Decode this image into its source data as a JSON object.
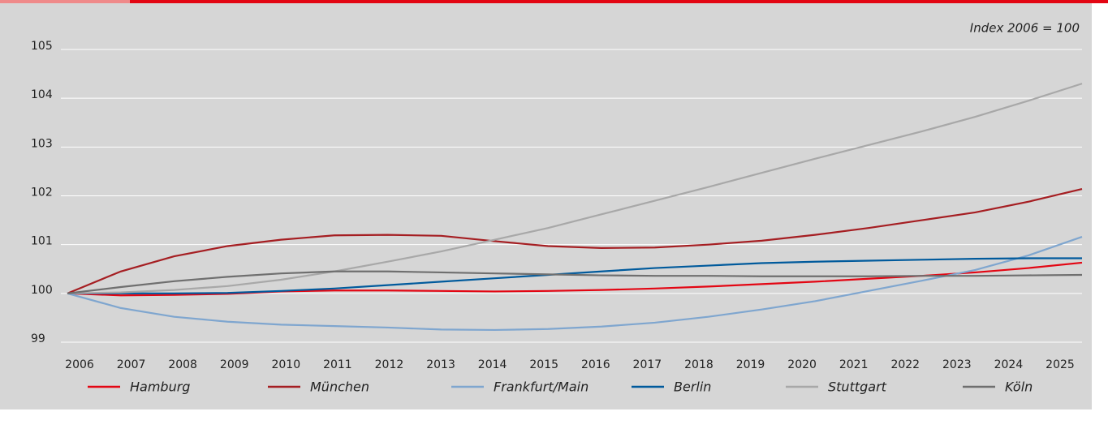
{
  "chart_data": {
    "type": "line",
    "annotation": "Index 2006 = 100",
    "categories": [
      "2006",
      "2007",
      "2008",
      "2009",
      "2010",
      "2011",
      "2012",
      "2013",
      "2014",
      "2015",
      "2016",
      "2017",
      "2018",
      "2019",
      "2020",
      "2021",
      "2022",
      "2023",
      "2024",
      "2025"
    ],
    "ylim": [
      99,
      105
    ],
    "yticks": [
      99,
      100,
      101,
      102,
      103,
      104,
      105
    ],
    "grid": true,
    "series": [
      {
        "name": "Hamburg",
        "color": "#e30613",
        "values": [
          100,
          99.96,
          99.97,
          99.99,
          100.04,
          100.06,
          100.06,
          100.05,
          100.04,
          100.05,
          100.07,
          100.1,
          100.14,
          100.19,
          100.24,
          100.3,
          100.36,
          100.43,
          100.52,
          100.63
        ]
      },
      {
        "name": "München",
        "color": "#a51e22",
        "values": [
          100,
          100.45,
          100.76,
          100.97,
          101.1,
          101.19,
          101.2,
          101.18,
          101.07,
          100.97,
          100.93,
          100.94,
          101.0,
          101.08,
          101.2,
          101.34,
          101.5,
          101.66,
          101.88,
          102.14
        ]
      },
      {
        "name": "Frankfurt/Main",
        "color": "#7fa6cf",
        "values": [
          100,
          99.7,
          99.52,
          99.42,
          99.36,
          99.33,
          99.3,
          99.26,
          99.25,
          99.27,
          99.32,
          99.4,
          99.52,
          99.67,
          99.84,
          100.05,
          100.26,
          100.48,
          100.78,
          101.16
        ]
      },
      {
        "name": "Berlin",
        "color": "#005a9c",
        "values": [
          100,
          100.0,
          100.0,
          100.01,
          100.05,
          100.1,
          100.17,
          100.24,
          100.31,
          100.38,
          100.45,
          100.52,
          100.57,
          100.62,
          100.65,
          100.67,
          100.69,
          100.71,
          100.72,
          100.72
        ]
      },
      {
        "name": "Stuttgart",
        "color": "#a8a8a8",
        "values": [
          100,
          100.02,
          100.07,
          100.15,
          100.28,
          100.45,
          100.65,
          100.86,
          101.1,
          101.34,
          101.62,
          101.9,
          102.18,
          102.47,
          102.76,
          103.04,
          103.32,
          103.62,
          103.95,
          104.3
        ]
      },
      {
        "name": "Köln",
        "color": "#6f6f6f",
        "values": [
          100,
          100.13,
          100.25,
          100.34,
          100.41,
          100.45,
          100.45,
          100.43,
          100.41,
          100.39,
          100.37,
          100.36,
          100.36,
          100.35,
          100.35,
          100.35,
          100.36,
          100.36,
          100.37,
          100.38
        ]
      }
    ]
  }
}
